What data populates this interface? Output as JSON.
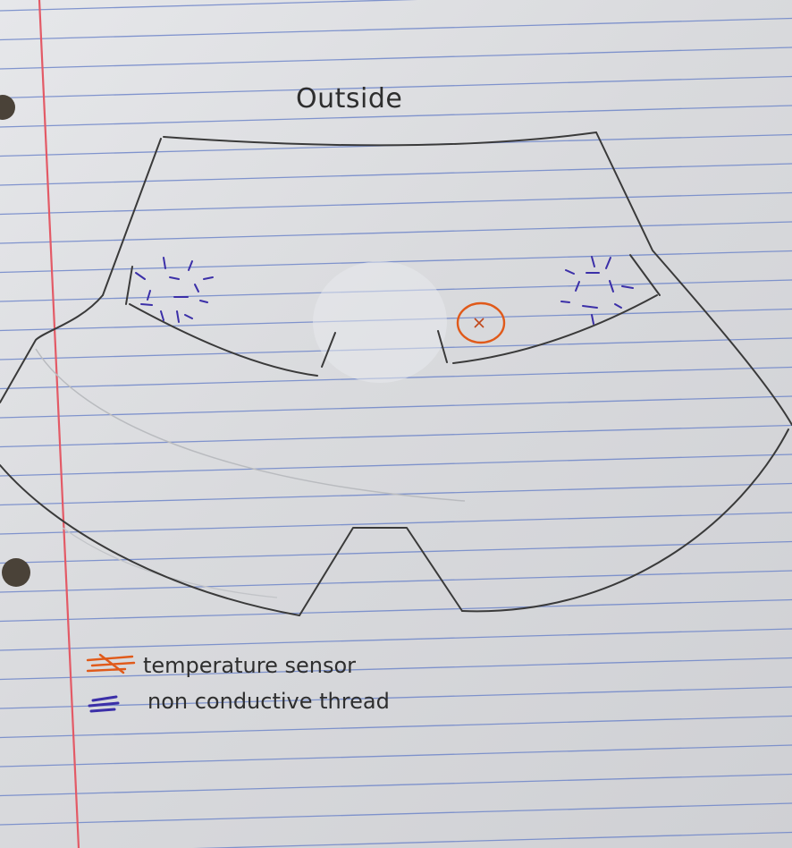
{
  "title": "Outside",
  "legend": [
    {
      "label": "temperature sensor",
      "color": "#e05a1a"
    },
    {
      "label": "non conductive thread",
      "color": "#3b2fa8"
    }
  ],
  "colors": {
    "paper": "#dcdde0",
    "ruled_line": "#6f86c9",
    "margin_line": "#e35a66",
    "pencil": "#3a3a3a"
  }
}
